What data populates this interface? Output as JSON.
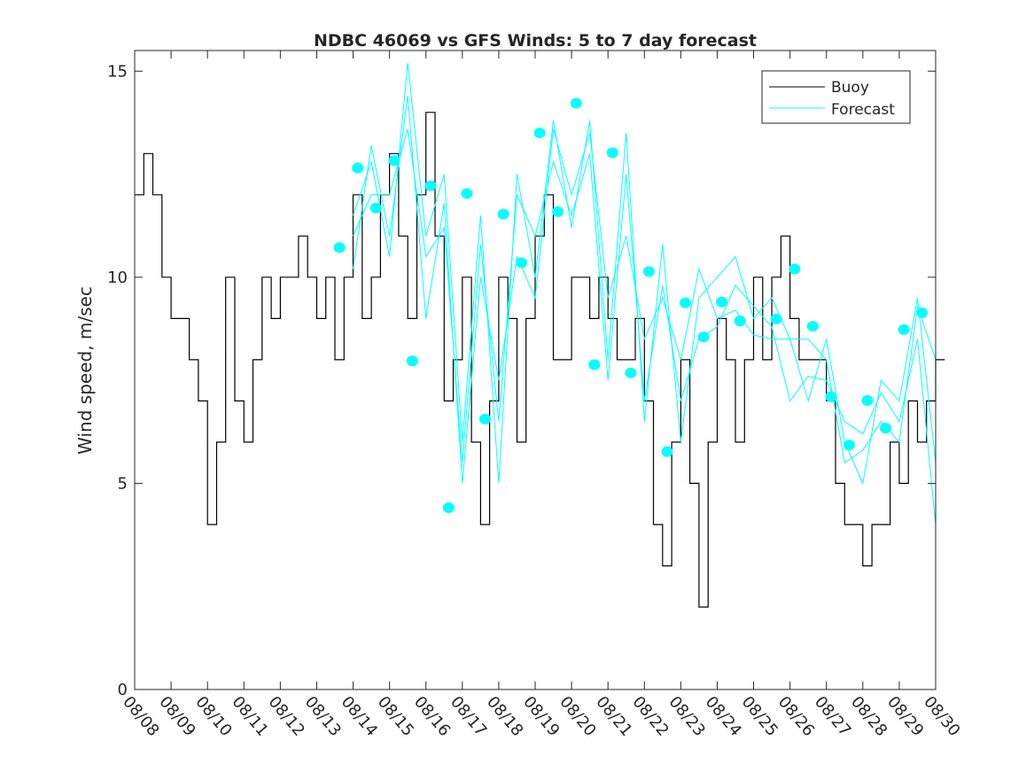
{
  "chart_data": {
    "type": "line",
    "title": "NDBC 46069 vs GFS Winds: 5 to 7 day forecast",
    "xlabel": "",
    "ylabel": "Wind speed, m/sec",
    "xlim_days": [
      0,
      22
    ],
    "ylim": [
      0,
      15.5
    ],
    "x_tick_labels": [
      "08/08",
      "08/09",
      "08/10",
      "08/11",
      "08/12",
      "08/13",
      "08/14",
      "08/15",
      "08/16",
      "08/17",
      "08/18",
      "08/19",
      "08/20",
      "08/21",
      "08/22",
      "08/23",
      "08/24",
      "08/25",
      "08/26",
      "08/27",
      "08/28",
      "08/29",
      "08/30"
    ],
    "y_ticks": [
      0,
      5,
      10,
      15
    ],
    "y_tick_labels": [
      "0",
      "5",
      "10",
      "15"
    ],
    "grid": false,
    "legend": {
      "position": "top-right",
      "entries": [
        "Buoy",
        "Forecast"
      ]
    },
    "colors": {
      "buoy": "#000000",
      "forecast": "#00ffff"
    },
    "buoy": {
      "name": "Buoy",
      "start_day": 0,
      "step_days": 0.25,
      "values": [
        12,
        13,
        12,
        10,
        9,
        9,
        8,
        7,
        4,
        6,
        10,
        7,
        6,
        8,
        10,
        9,
        10,
        10,
        11,
        10,
        9,
        10,
        8,
        10,
        12,
        9,
        10,
        12,
        13,
        11,
        9,
        12,
        14,
        11,
        7,
        8,
        10,
        6,
        4,
        7,
        10,
        9,
        6,
        9,
        11,
        12,
        8,
        8,
        10,
        10,
        9,
        10,
        9,
        8,
        8,
        9,
        7,
        4,
        3,
        6,
        8,
        5,
        2,
        6,
        9,
        8,
        6,
        8,
        10,
        8,
        10,
        11,
        9,
        8,
        8,
        8,
        7,
        5,
        4,
        4,
        3,
        4,
        4,
        6,
        5,
        7,
        6,
        7,
        8
      ]
    },
    "forecast_lines": [
      {
        "name": "Forecast",
        "start_day": 6.0,
        "step_days": 0.5,
        "values": [
          11.5,
          12.8,
          10.5,
          15.2,
          11.0,
          12.5,
          6.0,
          11.5,
          5.0,
          12.5,
          10.0,
          13.8,
          11.2,
          13.8,
          8.0,
          13.5,
          6.5,
          10.8,
          6.0,
          9.5,
          10.0,
          10.5,
          9.0,
          9.5,
          8.5,
          7.0,
          8.5,
          6.0,
          5.0,
          7.5,
          7.0,
          9.5,
          5.5
        ]
      },
      {
        "name": "Forecast",
        "start_day": 6.0,
        "step_days": 0.5,
        "values": [
          10.2,
          13.2,
          11.0,
          14.4,
          9.0,
          11.8,
          5.0,
          10.0,
          7.5,
          10.5,
          9.5,
          13.6,
          12.0,
          13.5,
          9.5,
          11.0,
          8.5,
          9.5,
          8.0,
          10.2,
          9.0,
          9.2,
          8.6,
          8.5,
          8.5,
          8.5,
          8.0,
          5.5,
          5.8,
          6.5,
          6.0,
          9.3,
          8.0
        ]
      },
      {
        "name": "Forecast",
        "start_day": 6.0,
        "step_days": 0.5,
        "values": [
          11.0,
          12.0,
          12.0,
          13.6,
          10.5,
          11.2,
          5.5,
          10.8,
          6.5,
          12.0,
          11.0,
          12.8,
          11.5,
          13.0,
          7.5,
          12.5,
          7.0,
          9.8,
          7.0,
          8.5,
          8.8,
          9.8,
          9.3,
          8.8,
          7.0,
          7.6,
          7.5,
          6.5,
          6.2,
          7.2,
          6.5,
          8.5,
          4.0
        ]
      }
    ],
    "forecast_points": {
      "start_day": 5.625,
      "step_days": 0.5,
      "values": [
        10.72,
        12.65,
        11.68,
        12.83,
        7.97,
        12.22,
        4.41,
        12.03,
        6.56,
        11.53,
        10.35,
        13.5,
        11.59,
        14.22,
        7.88,
        13.02,
        7.68,
        10.14,
        5.77,
        9.38,
        8.55,
        9.4,
        8.94,
        null,
        8.99,
        10.2,
        8.81,
        7.1,
        5.93,
        7.01,
        6.34,
        8.73,
        9.14
      ]
    }
  }
}
